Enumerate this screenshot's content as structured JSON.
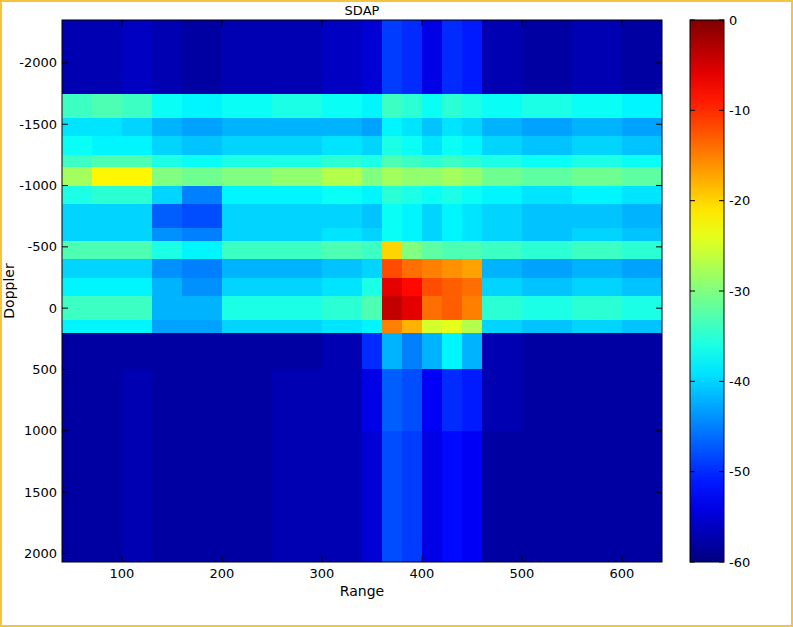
{
  "chart_data": {
    "type": "heatmap",
    "title": "SDAP",
    "x_label": "Range",
    "y_label": "Doppler",
    "xlim": [
      40,
      640
    ],
    "ylim": [
      -2350,
      2070
    ],
    "xticks": [
      100,
      200,
      300,
      400,
      500,
      600
    ],
    "yticks": [
      -2000,
      -1500,
      -1000,
      -500,
      0,
      500,
      1000,
      1500,
      2000
    ],
    "x_edges": [
      40,
      70,
      100,
      130,
      160,
      200,
      250,
      300,
      340,
      360,
      380,
      400,
      420,
      440,
      460,
      500,
      550,
      600,
      640
    ],
    "y_edges": [
      -2350,
      -1750,
      -1550,
      -1400,
      -1250,
      -1150,
      -1000,
      -850,
      -650,
      -550,
      -400,
      -250,
      -100,
      100,
      200,
      500,
      1000,
      1500,
      2070
    ],
    "cells": [
      [
        -57,
        -57,
        -56,
        -57,
        -58,
        -57,
        -57,
        -56,
        -55,
        -49,
        -50,
        -54,
        -50,
        -51,
        -57,
        -58,
        -57,
        -58
      ],
      [
        -34,
        -33,
        -34,
        -37,
        -38,
        -37,
        -36,
        -37,
        -38,
        -34,
        -35,
        -37,
        -35,
        -36,
        -37,
        -36,
        -37,
        -38
      ],
      [
        -39,
        -39,
        -40,
        -42,
        -43,
        -42,
        -42,
        -42,
        -43,
        -38,
        -39,
        -41,
        -39,
        -40,
        -42,
        -43,
        -42,
        -43
      ],
      [
        -37,
        -38,
        -38,
        -40,
        -41,
        -40,
        -40,
        -39,
        -40,
        -36,
        -37,
        -39,
        -37,
        -38,
        -40,
        -41,
        -40,
        -41
      ],
      [
        -34,
        -33,
        -33,
        -36,
        -37,
        -36,
        -36,
        -35,
        -36,
        -33,
        -34,
        -35,
        -34,
        -35,
        -36,
        -37,
        -36,
        -37
      ],
      [
        -28,
        -22,
        -22,
        -30,
        -31,
        -30,
        -29,
        -27,
        -30,
        -28,
        -29,
        -29,
        -28,
        -29,
        -31,
        -32,
        -31,
        -32
      ],
      [
        -36,
        -35,
        -35,
        -40,
        -45,
        -38,
        -38,
        -37,
        -38,
        -35,
        -36,
        -37,
        -36,
        -37,
        -38,
        -39,
        -38,
        -39
      ],
      [
        -40,
        -40,
        -40,
        -47,
        -48,
        -40,
        -40,
        -40,
        -41,
        -37,
        -38,
        -40,
        -38,
        -39,
        -40,
        -41,
        -41,
        -42
      ],
      [
        -40,
        -40,
        -40,
        -44,
        -45,
        -40,
        -40,
        -39,
        -40,
        -37,
        -38,
        -40,
        -38,
        -39,
        -40,
        -41,
        -40,
        -41
      ],
      [
        -33,
        -33,
        -33,
        -36,
        -38,
        -34,
        -34,
        -33,
        -34,
        -20,
        -30,
        -32,
        -33,
        -33,
        -34,
        -35,
        -34,
        -35
      ],
      [
        -40,
        -40,
        -40,
        -44,
        -45,
        -42,
        -42,
        -41,
        -40,
        -12,
        -14,
        -15,
        -16,
        -17,
        -42,
        -43,
        -42,
        -43
      ],
      [
        -38,
        -38,
        -38,
        -42,
        -44,
        -40,
        -40,
        -39,
        -36,
        -6,
        -8,
        -12,
        -13,
        -14,
        -40,
        -41,
        -40,
        -41
      ],
      [
        -34,
        -34,
        -34,
        -42,
        -42,
        -36,
        -36,
        -35,
        -33,
        -4,
        -6,
        -14,
        -13,
        -15,
        -35,
        -36,
        -35,
        -36
      ],
      [
        -38,
        -38,
        -38,
        -43,
        -43,
        -40,
        -40,
        -39,
        -38,
        -15,
        -18,
        -25,
        -24,
        -27,
        -40,
        -41,
        -40,
        -41
      ],
      [
        -58,
        -58,
        -58,
        -58,
        -58,
        -58,
        -58,
        -57,
        -50,
        -42,
        -45,
        -42,
        -38,
        -42,
        -57,
        -58,
        -58,
        -58
      ],
      [
        -58,
        -58,
        -57,
        -58,
        -58,
        -58,
        -57,
        -57,
        -54,
        -47,
        -48,
        -53,
        -50,
        -51,
        -57,
        -58,
        -58,
        -58
      ],
      [
        -58,
        -58,
        -57,
        -58,
        -58,
        -58,
        -57,
        -57,
        -55,
        -48,
        -49,
        -54,
        -52,
        -53,
        -58,
        -58,
        -58,
        -58
      ],
      [
        -58,
        -58,
        -57,
        -58,
        -58,
        -58,
        -57,
        -57,
        -55,
        -48,
        -49,
        -54,
        -52,
        -53,
        -58,
        -58,
        -58,
        -58
      ]
    ],
    "colorbar_lim": [
      -60,
      0
    ],
    "colorbar_ticks": [
      0,
      -10,
      -20,
      -30,
      -40,
      -50,
      -60
    ]
  }
}
